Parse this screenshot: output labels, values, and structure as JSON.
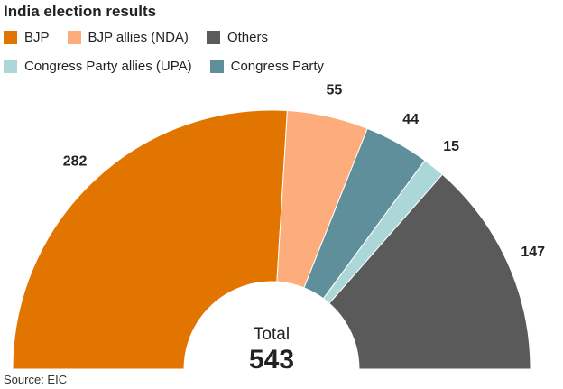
{
  "chart_data": {
    "type": "pie",
    "title": "India election results",
    "categories": [
      "BJP",
      "BJP allies (NDA)",
      "Congress Party",
      "Congress Party allies (UPA)",
      "Others"
    ],
    "values": [
      282,
      55,
      44,
      15,
      147
    ],
    "colors": [
      "#e27400",
      "#fdac7c",
      "#5f8f9b",
      "#acd7d8",
      "#5a5a5a"
    ],
    "legend": {
      "position": "top",
      "rows": [
        [
          {
            "label": "BJP",
            "color": "#e27400"
          },
          {
            "label": "BJP allies (NDA)",
            "color": "#fdac7c"
          },
          {
            "label": "Others",
            "color": "#5a5a5a"
          }
        ],
        [
          {
            "label": "Congress Party allies (UPA)",
            "color": "#acd7d8"
          },
          {
            "label": "Congress Party",
            "color": "#5f8f9b"
          }
        ]
      ]
    },
    "style": "half-donut",
    "center_label": "Total",
    "total": "543",
    "source": "Source: EIC"
  }
}
